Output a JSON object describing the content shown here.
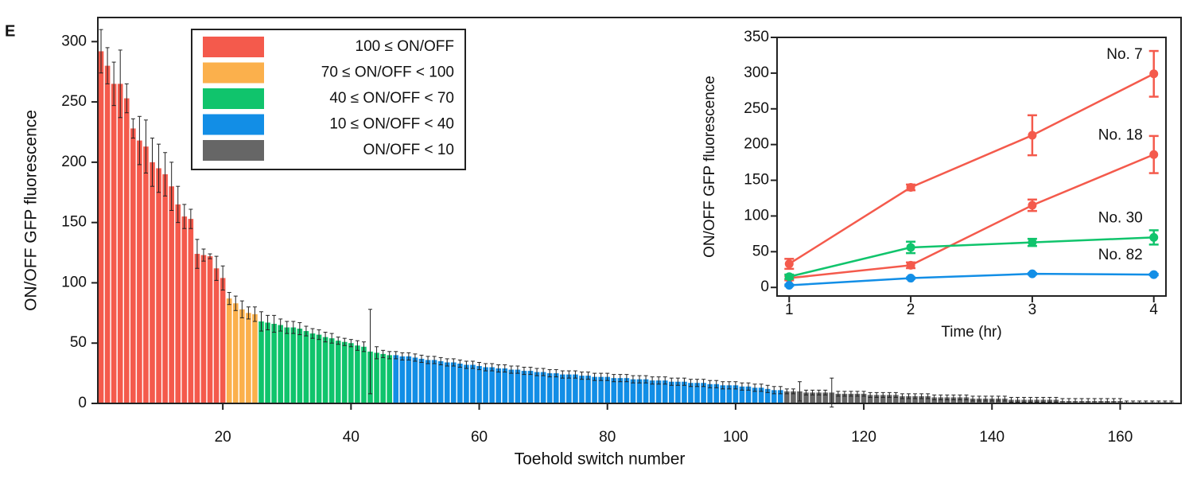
{
  "chart_data": [
    {
      "type": "bar",
      "panel_label": "E",
      "xlabel": "Toehold switch number",
      "ylabel": "ON/OFF GFP fluorescence",
      "xlim": [
        0.5,
        169.5
      ],
      "ylim": [
        0,
        320
      ],
      "xticks": [
        20,
        40,
        60,
        80,
        100,
        120,
        140,
        160
      ],
      "yticks": [
        0,
        50,
        100,
        150,
        200,
        250,
        300
      ],
      "legend": "upper left",
      "series": [
        {
          "name": "100 ≤ ON/OFF",
          "color": "#f45a4c",
          "x": [
            1,
            2,
            3,
            4,
            5,
            6,
            7,
            8,
            9,
            10,
            11,
            12,
            13,
            14,
            15,
            16,
            17,
            18,
            19,
            20
          ],
          "values": [
            292,
            280,
            265,
            265,
            253,
            228,
            218,
            213,
            200,
            195,
            190,
            180,
            165,
            155,
            153,
            124,
            123,
            122,
            112,
            104
          ],
          "errors": [
            18,
            15,
            18,
            28,
            12,
            8,
            20,
            22,
            20,
            20,
            18,
            20,
            15,
            10,
            8,
            12,
            5,
            2,
            10,
            10
          ]
        },
        {
          "name": "70 ≤ ON/OFF < 100",
          "color": "#fbb04c",
          "x": [
            21,
            22,
            23,
            24,
            25
          ],
          "values": [
            87,
            83,
            78,
            75,
            74
          ],
          "errors": [
            5,
            6,
            7,
            5,
            6
          ]
        },
        {
          "name": "40 ≤ ON/OFF < 70",
          "color": "#10c46c",
          "x": [
            26,
            27,
            28,
            29,
            30,
            31,
            32,
            33,
            34,
            35,
            36,
            37,
            38,
            39,
            40,
            41,
            42,
            43,
            44,
            45,
            46
          ],
          "values": [
            68,
            67,
            66,
            65,
            63,
            63,
            62,
            60,
            58,
            57,
            55,
            54,
            52,
            51,
            50,
            48,
            47,
            43,
            42,
            41,
            40
          ],
          "errors": [
            8,
            6,
            7,
            5,
            5,
            5,
            5,
            4,
            4,
            4,
            4,
            4,
            3,
            3,
            3,
            4,
            4,
            35,
            5,
            3,
            3
          ]
        },
        {
          "name": "10 ≤ ON/OFF < 40",
          "color": "#128ee6",
          "x": [
            47,
            48,
            49,
            50,
            51,
            52,
            53,
            54,
            55,
            56,
            57,
            58,
            59,
            60,
            61,
            62,
            63,
            64,
            65,
            66,
            67,
            68,
            69,
            70,
            71,
            72,
            73,
            74,
            75,
            76,
            77,
            78,
            79,
            80,
            81,
            82,
            83,
            84,
            85,
            86,
            87,
            88,
            89,
            90,
            91,
            92,
            93,
            94,
            95,
            96,
            97,
            98,
            99,
            100,
            101,
            102,
            103,
            104,
            105,
            106,
            107
          ],
          "values": [
            40,
            39,
            39,
            38,
            37,
            36,
            36,
            35,
            34,
            34,
            33,
            32,
            32,
            31,
            30,
            30,
            29,
            29,
            28,
            28,
            27,
            27,
            26,
            26,
            25,
            25,
            24,
            24,
            24,
            23,
            23,
            22,
            22,
            22,
            21,
            21,
            21,
            20,
            20,
            20,
            19,
            19,
            19,
            18,
            18,
            18,
            17,
            17,
            17,
            16,
            16,
            15,
            15,
            15,
            14,
            14,
            13,
            13,
            12,
            11,
            11
          ],
          "errors": [
            3,
            3,
            3,
            3,
            3,
            3,
            3,
            3,
            3,
            3,
            3,
            3,
            3,
            3,
            3,
            3,
            3,
            3,
            3,
            3,
            3,
            3,
            3,
            3,
            3,
            3,
            3,
            3,
            3,
            3,
            3,
            3,
            3,
            3,
            3,
            3,
            3,
            3,
            3,
            3,
            3,
            3,
            3,
            3,
            3,
            3,
            3,
            3,
            3,
            3,
            3,
            3,
            3,
            3,
            3,
            3,
            3,
            3,
            3,
            3,
            3
          ]
        },
        {
          "name": "ON/OFF < 10",
          "color": "#666666",
          "x": [
            108,
            109,
            110,
            111,
            112,
            113,
            114,
            115,
            116,
            117,
            118,
            119,
            120,
            121,
            122,
            123,
            124,
            125,
            126,
            127,
            128,
            129,
            130,
            131,
            132,
            133,
            134,
            135,
            136,
            137,
            138,
            139,
            140,
            141,
            142,
            143,
            144,
            145,
            146,
            147,
            148,
            149,
            150,
            151,
            152,
            153,
            154,
            155,
            156,
            157,
            158,
            159,
            160,
            161,
            162,
            163,
            164,
            165,
            166,
            167,
            168
          ],
          "values": [
            10,
            10,
            10,
            9,
            9,
            9,
            9,
            9,
            8,
            8,
            8,
            8,
            8,
            7,
            7,
            7,
            7,
            7,
            6,
            6,
            6,
            6,
            6,
            5,
            5,
            5,
            5,
            5,
            5,
            4,
            4,
            4,
            4,
            4,
            4,
            3,
            3,
            3,
            3,
            3,
            3,
            3,
            3,
            2,
            2,
            2,
            2,
            2,
            2,
            2,
            2,
            2,
            2,
            1,
            1,
            1,
            1,
            1,
            1,
            1,
            1
          ],
          "errors": [
            2,
            2,
            8,
            2,
            2,
            2,
            2,
            12,
            2,
            2,
            2,
            2,
            2,
            2,
            2,
            2,
            2,
            2,
            2,
            2,
            2,
            2,
            2,
            2,
            2,
            2,
            2,
            2,
            2,
            2,
            2,
            2,
            2,
            2,
            2,
            2,
            2,
            2,
            2,
            2,
            2,
            2,
            2,
            2,
            2,
            2,
            2,
            2,
            2,
            2,
            2,
            2,
            2,
            1,
            1,
            1,
            1,
            1,
            1,
            1,
            1
          ]
        }
      ]
    },
    {
      "type": "line",
      "xlabel": "Time (hr)",
      "ylabel": "ON/OFF GFP fluorescence",
      "x": [
        1,
        2,
        3,
        4
      ],
      "xlim": [
        0.9,
        4.1
      ],
      "ylim": [
        -12,
        350
      ],
      "xticks": [
        1,
        2,
        3,
        4
      ],
      "yticks": [
        0,
        50,
        100,
        150,
        200,
        250,
        300,
        350
      ],
      "series": [
        {
          "name": "No. 7",
          "color": "#f45a4c",
          "values": [
            33,
            140,
            213,
            299
          ],
          "errors": [
            7,
            4,
            28,
            32
          ]
        },
        {
          "name": "No. 18",
          "color": "#f45a4c",
          "values": [
            13,
            31,
            115,
            186
          ],
          "errors": [
            3,
            4,
            8,
            26
          ]
        },
        {
          "name": "No. 30",
          "color": "#10c46c",
          "values": [
            15,
            56,
            63,
            70
          ],
          "errors": [
            3,
            8,
            5,
            10
          ]
        },
        {
          "name": "No. 82",
          "color": "#128ee6",
          "values": [
            3,
            13,
            19,
            18
          ],
          "errors": [
            1,
            1,
            1,
            1
          ]
        }
      ]
    }
  ]
}
